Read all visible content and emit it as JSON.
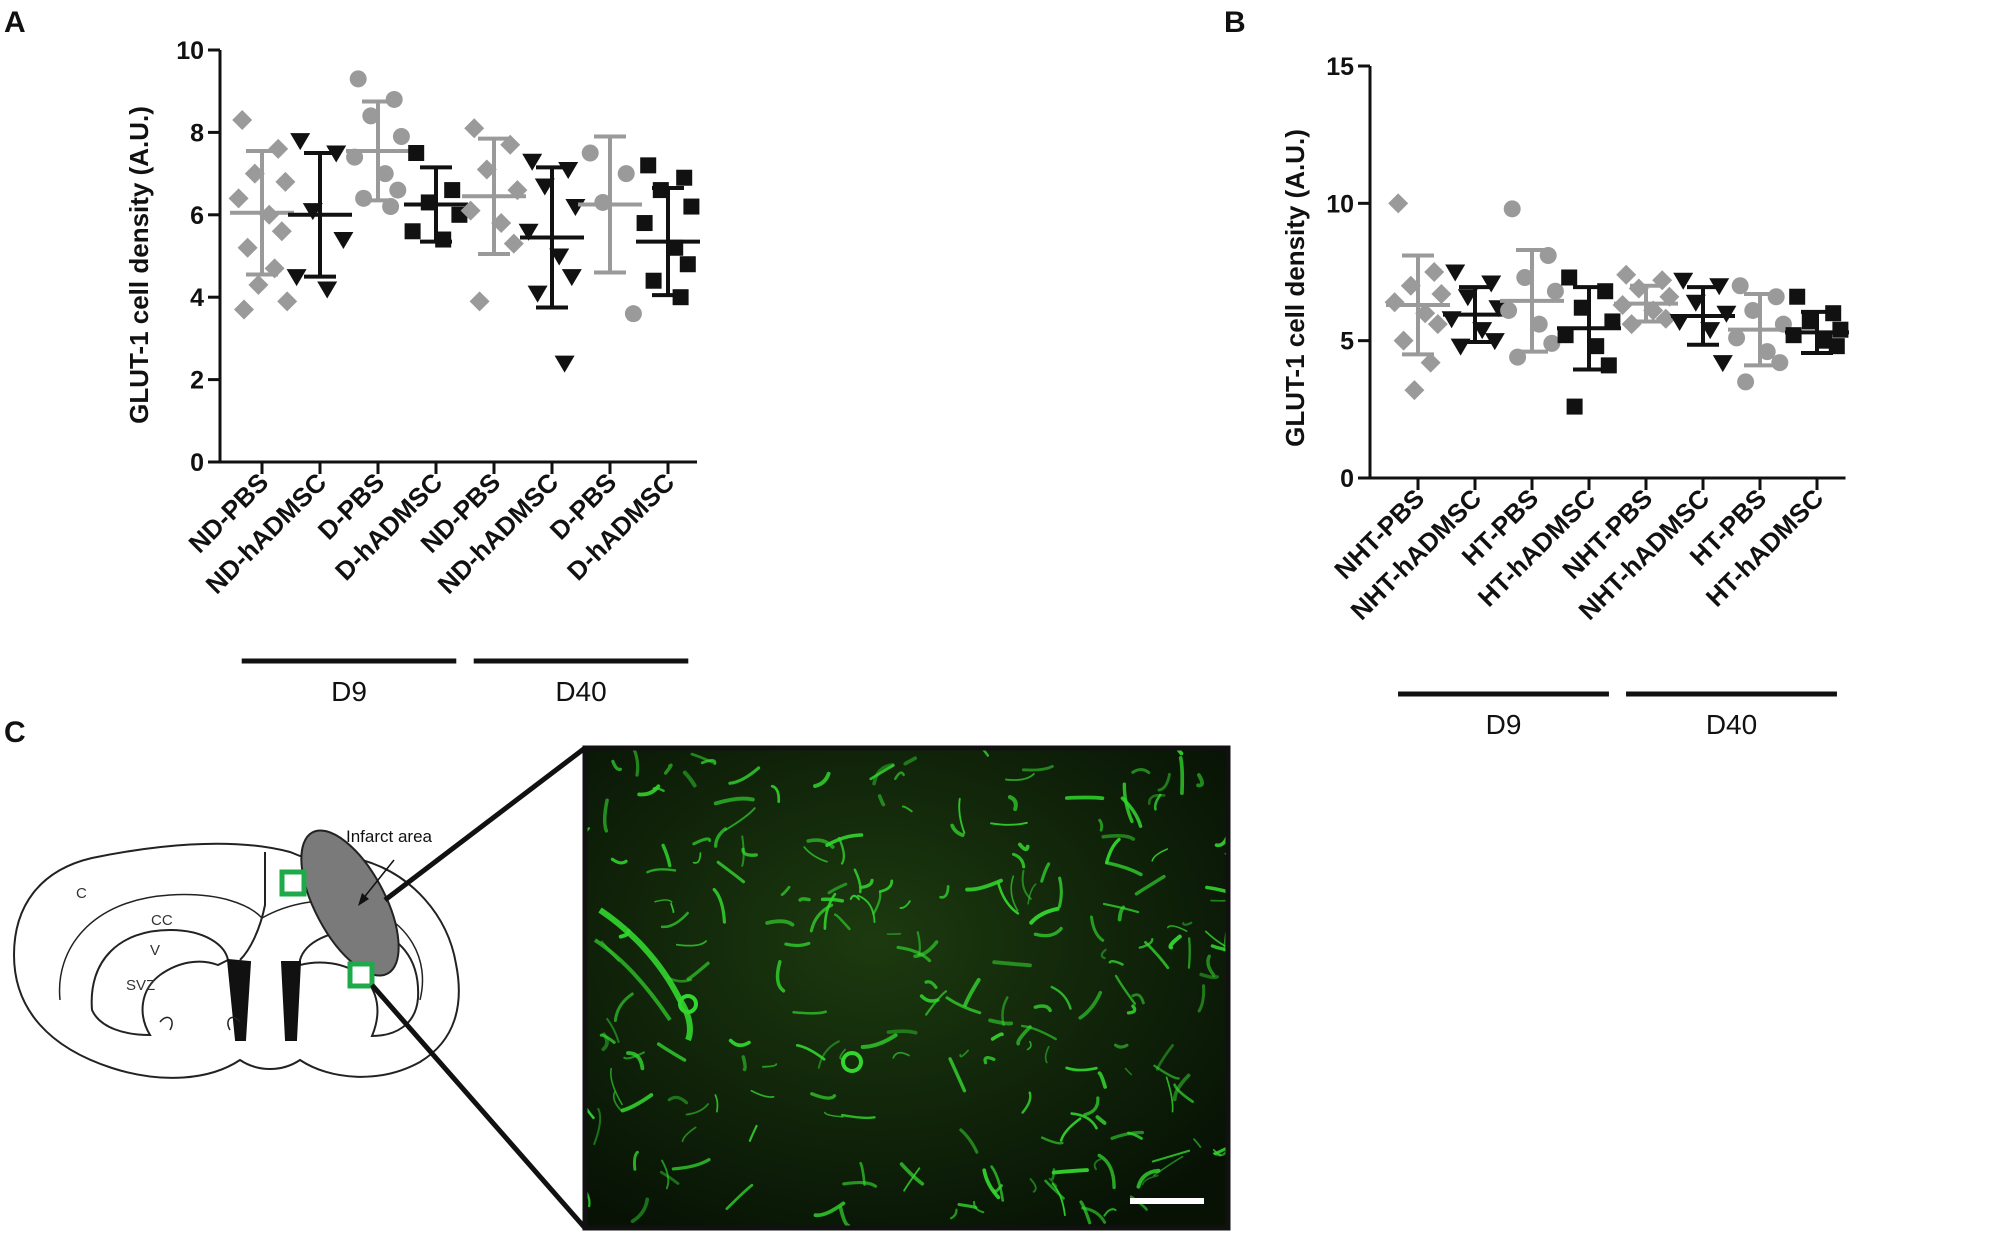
{
  "panels": [
    {
      "letter": "A"
    },
    {
      "letter": "B"
    },
    {
      "letter": "C"
    }
  ],
  "colors": {
    "gray": "#9a9a9a",
    "black": "#111111",
    "green": "#1faa4a",
    "micro_bg": "#0b1a08",
    "micro_vessel": "#33d62e"
  },
  "chart_data": [
    {
      "type": "scatter",
      "ylabel": "GLUT-1 cell density (A.U.)",
      "ylim": [
        0,
        10
      ],
      "yticks": [
        0,
        2,
        4,
        6,
        8,
        10
      ],
      "categories": [
        "ND-PBS",
        "ND-hADMSC",
        "D-PBS",
        "D-hADMSC",
        "ND-PBS",
        "ND-hADMSC",
        "D-PBS",
        "D-hADMSC"
      ],
      "groups": [
        {
          "label": "D9",
          "span": [
            0,
            3
          ]
        },
        {
          "label": "D40",
          "span": [
            4,
            7
          ]
        }
      ],
      "series": [
        {
          "color": "gray",
          "marker": "diamond",
          "mean": 6.05,
          "sd": 1.5,
          "points": [
            8.3,
            7.6,
            7.0,
            6.8,
            6.4,
            6.0,
            5.6,
            5.2,
            4.7,
            4.3,
            3.9,
            3.7
          ]
        },
        {
          "color": "black",
          "marker": "triangle-down",
          "mean": 6.0,
          "sd": 1.5,
          "points": [
            7.8,
            7.5,
            6.1,
            5.4,
            4.5,
            4.2
          ]
        },
        {
          "color": "gray",
          "marker": "circle",
          "mean": 7.55,
          "sd": 1.2,
          "points": [
            9.3,
            8.8,
            8.4,
            7.9,
            7.4,
            7.0,
            6.6,
            6.4,
            6.2
          ]
        },
        {
          "color": "black",
          "marker": "square",
          "mean": 6.25,
          "sd": 0.9,
          "points": [
            7.5,
            6.6,
            6.3,
            6.0,
            5.6,
            5.4
          ]
        },
        {
          "color": "gray",
          "marker": "diamond",
          "mean": 6.45,
          "sd": 1.4,
          "points": [
            8.1,
            7.7,
            7.1,
            6.6,
            6.1,
            5.8,
            5.3,
            3.9
          ]
        },
        {
          "color": "black",
          "marker": "triangle-down",
          "mean": 5.45,
          "sd": 1.7,
          "points": [
            7.3,
            7.1,
            6.7,
            6.2,
            5.6,
            5.0,
            4.5,
            4.1,
            2.4
          ]
        },
        {
          "color": "gray",
          "marker": "circle",
          "mean": 6.25,
          "sd": 1.65,
          "points": [
            7.5,
            7.0,
            6.3,
            3.6
          ]
        },
        {
          "color": "black",
          "marker": "square",
          "mean": 5.35,
          "sd": 1.3,
          "points": [
            7.2,
            6.9,
            6.6,
            6.2,
            5.8,
            5.2,
            4.8,
            4.4,
            4.0
          ]
        }
      ]
    },
    {
      "type": "scatter",
      "ylabel": "GLUT-1 cell density (A.U.)",
      "ylim": [
        0,
        15
      ],
      "yticks": [
        0,
        5,
        10,
        15
      ],
      "categories": [
        "NHT-PBS",
        "NHT-hADMSC",
        "HT-PBS",
        "HT-hADMSC",
        "NHT-PBS",
        "NHT-hADMSC",
        "HT-PBS",
        "HT-hADMSC"
      ],
      "groups": [
        {
          "label": "D9",
          "span": [
            0,
            3
          ]
        },
        {
          "label": "D40",
          "span": [
            4,
            7
          ]
        }
      ],
      "series": [
        {
          "color": "gray",
          "marker": "diamond",
          "mean": 6.3,
          "sd": 1.8,
          "points": [
            10.0,
            7.5,
            7.0,
            6.7,
            6.4,
            6.0,
            5.6,
            5.0,
            4.2,
            3.2
          ]
        },
        {
          "color": "black",
          "marker": "triangle-down",
          "mean": 5.95,
          "sd": 1.0,
          "points": [
            7.5,
            7.1,
            6.6,
            6.2,
            5.8,
            5.4,
            5.0,
            4.8
          ]
        },
        {
          "color": "gray",
          "marker": "circle",
          "mean": 6.45,
          "sd": 1.85,
          "points": [
            9.8,
            8.1,
            7.3,
            6.8,
            6.1,
            5.6,
            4.9,
            4.4
          ]
        },
        {
          "color": "black",
          "marker": "square",
          "mean": 5.45,
          "sd": 1.5,
          "points": [
            7.3,
            6.8,
            6.2,
            5.7,
            5.2,
            4.8,
            4.1,
            2.6
          ]
        },
        {
          "color": "gray",
          "marker": "diamond",
          "mean": 6.35,
          "sd": 0.65,
          "points": [
            7.4,
            7.2,
            6.9,
            6.6,
            6.3,
            6.1,
            5.8,
            5.6
          ]
        },
        {
          "color": "black",
          "marker": "triangle-down",
          "mean": 5.9,
          "sd": 1.05,
          "points": [
            7.2,
            7.0,
            6.4,
            6.0,
            5.7,
            5.4,
            4.2
          ]
        },
        {
          "color": "gray",
          "marker": "circle",
          "mean": 5.4,
          "sd": 1.3,
          "points": [
            7.0,
            6.6,
            6.1,
            5.6,
            5.1,
            4.6,
            4.2,
            3.5
          ]
        },
        {
          "color": "black",
          "marker": "square",
          "mean": 5.3,
          "sd": 0.75,
          "points": [
            6.6,
            6.0,
            5.7,
            5.4,
            5.2,
            5.0,
            4.8
          ]
        }
      ]
    }
  ],
  "diagram": {
    "infarct_label": "Infarct area",
    "region_labels": [
      "C",
      "CC",
      "V",
      "SVZ"
    ]
  }
}
